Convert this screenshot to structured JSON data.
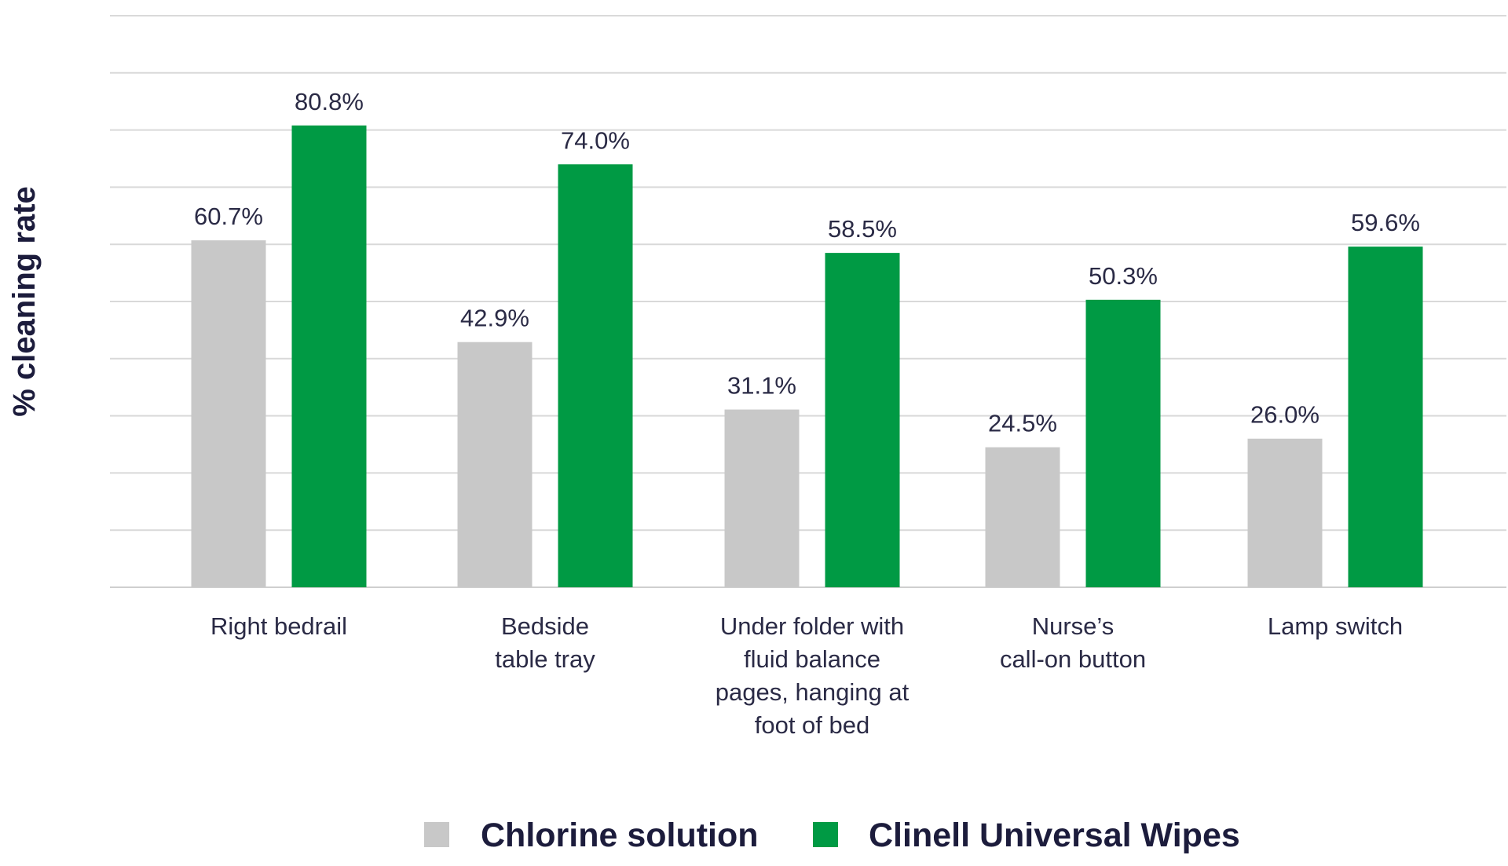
{
  "chart_data": {
    "type": "bar",
    "categories": [
      [
        "Right bedrail"
      ],
      [
        "Bedside",
        "table tray"
      ],
      [
        "Under folder with",
        "fluid balance",
        "pages, hanging at",
        "foot of bed"
      ],
      [
        "Nurse’s",
        "call-on button"
      ],
      [
        "Lamp switch"
      ]
    ],
    "series": [
      {
        "name": "Chlorine solution",
        "color": "#c8c8c8",
        "values": [
          60.7,
          42.9,
          31.1,
          24.5,
          26.0
        ],
        "labels": [
          "60.7%",
          "42.9%",
          "31.1%",
          "24.5%",
          "26.0%"
        ]
      },
      {
        "name": "Clinell Universal Wipes",
        "color": "#009a44",
        "values": [
          80.8,
          74.0,
          58.5,
          50.3,
          59.6
        ],
        "labels": [
          "80.8%",
          "74.0%",
          "58.5%",
          "50.3%",
          "59.6%"
        ]
      }
    ],
    "ylabel": "% cleaning rate",
    "ylim": [
      0,
      100
    ],
    "grid": true,
    "legend_position": "bottom"
  }
}
